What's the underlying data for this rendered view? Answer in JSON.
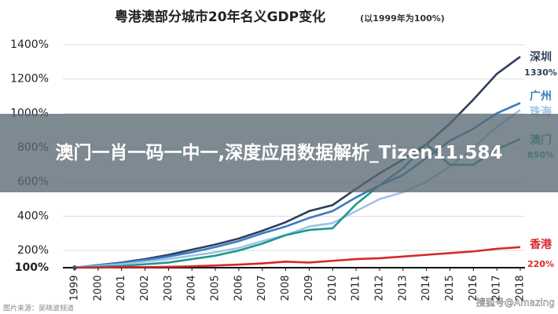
{
  "chart_data": {
    "type": "line",
    "title": "粤港澳部分城市20年名义GDP变化",
    "subtitle": "(以1999年为100%)",
    "x": [
      1999,
      2000,
      2001,
      2002,
      2003,
      2004,
      2005,
      2006,
      2007,
      2008,
      2009,
      2010,
      2011,
      2012,
      2013,
      2014,
      2015,
      2016,
      2017,
      2018
    ],
    "xlim": [
      1999,
      2018
    ],
    "xticks": [
      1999,
      2000,
      2001,
      2002,
      2003,
      2004,
      2005,
      2006,
      2007,
      2008,
      2009,
      2010,
      2011,
      2012,
      2013,
      2014,
      2015,
      2016,
      2017,
      2018
    ],
    "ylim": [
      100,
      1450
    ],
    "yticks": [
      {
        "value": 100,
        "label": "100%"
      },
      {
        "value": 200,
        "label": "200%"
      },
      {
        "value": 400,
        "label": "400%"
      },
      {
        "value": 600,
        "label": "600%"
      },
      {
        "value": 800,
        "label": "800%"
      },
      {
        "value": 1000,
        "label": "1000%"
      },
      {
        "value": 1200,
        "label": "1200%"
      },
      {
        "value": 1400,
        "label": "1400%"
      }
    ],
    "grid": true,
    "series": [
      {
        "name": "深圳",
        "color": "#2e3f5c",
        "values": [
          100,
          115,
          130,
          150,
          175,
          205,
          235,
          270,
          315,
          365,
          430,
          465,
          560,
          650,
          730,
          820,
          940,
          1080,
          1230,
          1330
        ],
        "value_labels": [
          null,
          null,
          null,
          null,
          null,
          null,
          null,
          null,
          null,
          null,
          null,
          null,
          null,
          null,
          null,
          null,
          null,
          null,
          null,
          "1330%"
        ]
      },
      {
        "name": "广州",
        "color": "#3a7cc1",
        "values": [
          100,
          115,
          128,
          145,
          165,
          190,
          220,
          255,
          300,
          340,
          390,
          430,
          510,
          580,
          640,
          740,
          840,
          910,
          1000,
          1060
        ]
      },
      {
        "name": "珠海",
        "color": "#9fc3e6",
        "values": [
          100,
          110,
          120,
          135,
          150,
          170,
          190,
          215,
          255,
          290,
          340,
          360,
          430,
          500,
          540,
          600,
          690,
          800,
          920,
          1020
        ]
      },
      {
        "name": "澳门",
        "color": "#1a9a8a",
        "values": [
          100,
          105,
          110,
          120,
          130,
          150,
          170,
          200,
          240,
          290,
          320,
          330,
          470,
          580,
          680,
          820,
          700,
          700,
          790,
          850
        ],
        "value_labels": [
          null,
          null,
          null,
          null,
          null,
          null,
          null,
          null,
          null,
          null,
          null,
          null,
          null,
          null,
          null,
          null,
          null,
          null,
          null,
          "850%"
        ]
      },
      {
        "name": "香港",
        "color": "#d9262b",
        "values": [
          100,
          100,
          103,
          103,
          105,
          108,
          113,
          118,
          125,
          135,
          130,
          140,
          150,
          155,
          165,
          175,
          185,
          195,
          210,
          220
        ],
        "value_labels": [
          null,
          null,
          null,
          null,
          null,
          null,
          null,
          null,
          null,
          null,
          null,
          null,
          null,
          null,
          null,
          null,
          null,
          null,
          null,
          "220%"
        ]
      }
    ]
  },
  "overlay_text": "澳门一肖一码一中一,深度应用数据解析_Tizen11.584",
  "watermark_left": "图片来源：吴晓波频道",
  "watermark_right": "搜狐号@Amazing"
}
